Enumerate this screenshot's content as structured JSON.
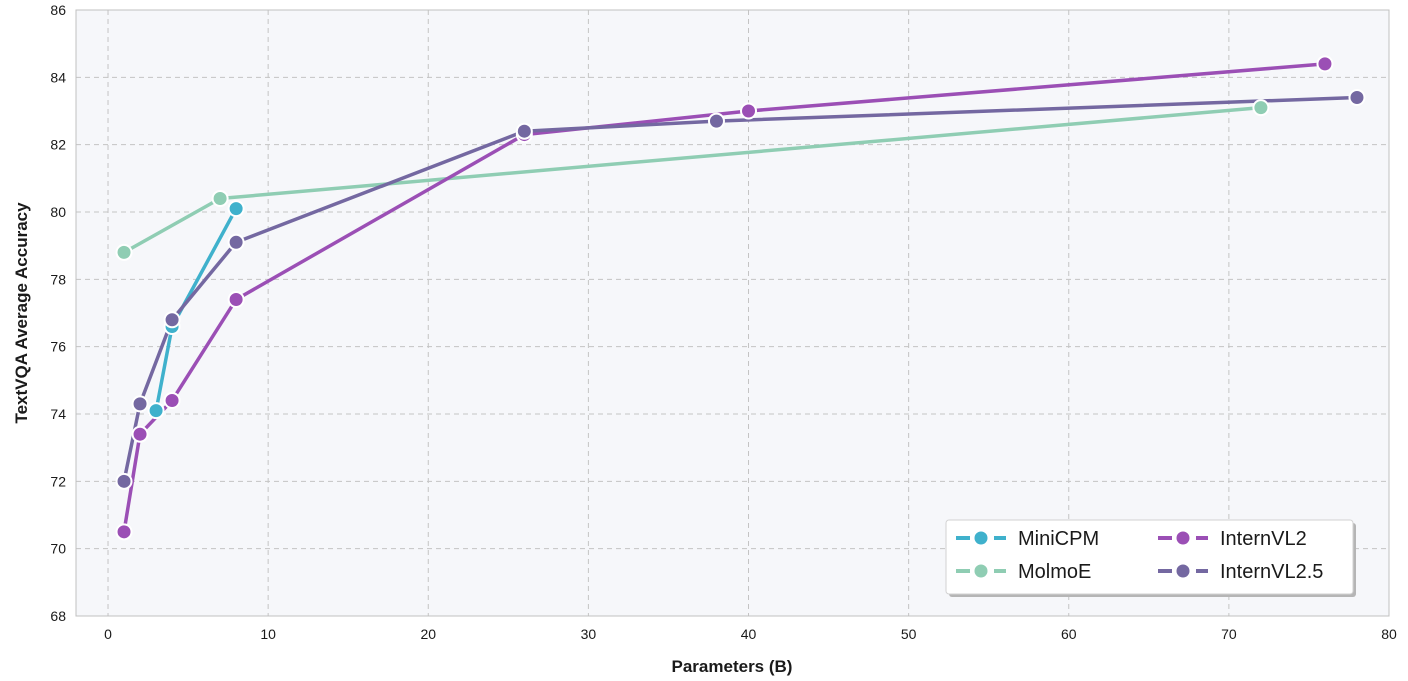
{
  "chart_data": {
    "type": "line",
    "xlabel": "Parameters (B)",
    "ylabel": "TextVQA Average Accuracy",
    "xlim": [
      -2,
      80
    ],
    "ylim": [
      68,
      86
    ],
    "xticks": [
      0,
      10,
      20,
      30,
      40,
      50,
      60,
      70,
      80
    ],
    "yticks": [
      68,
      70,
      72,
      74,
      76,
      78,
      80,
      82,
      84,
      86
    ],
    "grid": true,
    "legend_position": "lower-right",
    "series": [
      {
        "name": "MiniCPM",
        "color": "#3fb1cc",
        "x": [
          3,
          4,
          8
        ],
        "y": [
          74.1,
          76.6,
          80.1
        ]
      },
      {
        "name": "MolmoE",
        "color": "#8fcdb3",
        "x": [
          1,
          7,
          72
        ],
        "y": [
          78.8,
          80.4,
          83.1
        ]
      },
      {
        "name": "InternVL2",
        "color": "#9b4fb5",
        "x": [
          1,
          2,
          4,
          8,
          26,
          40,
          76
        ],
        "y": [
          70.5,
          73.4,
          74.4,
          77.4,
          82.3,
          83.0,
          84.4
        ]
      },
      {
        "name": "InternVL2.5",
        "color": "#7468a1",
        "x": [
          1,
          2,
          4,
          8,
          26,
          38,
          78
        ],
        "y": [
          72.0,
          74.3,
          76.8,
          79.1,
          82.4,
          82.7,
          83.4
        ]
      }
    ]
  }
}
